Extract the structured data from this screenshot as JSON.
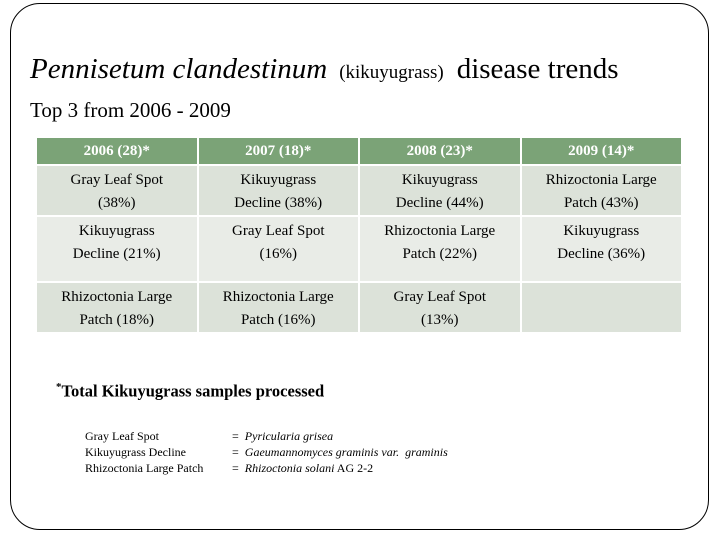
{
  "title": {
    "species": "Pennisetum clandestinum",
    "common_name": "(kikuyugrass)",
    "suffix": "disease trends",
    "subtitle": "Top 3 from 2006 - 2009"
  },
  "table": {
    "headers": [
      "2006 (28)*",
      "2007 (18)*",
      "2008 (23)*",
      "2009 (14)*"
    ],
    "rows": [
      [
        "Gray Leaf Spot\n(38%)",
        "Kikuyugrass\nDecline (38%)",
        "Kikuyugrass\nDecline (44%)",
        "Rhizoctonia Large\nPatch (43%)"
      ],
      [
        "Kikuyugrass\nDecline (21%)",
        "Gray Leaf Spot\n(16%)",
        "Rhizoctonia Large\nPatch (22%)",
        "Kikuyugrass\nDecline (36%)"
      ],
      [
        "Rhizoctonia Large\nPatch (18%)",
        "Rhizoctonia Large\nPatch (16%)",
        "Gray Leaf Spot\n(13%)",
        ""
      ]
    ]
  },
  "footnote": {
    "marker": "*",
    "text": "Total Kikuyugrass samples processed"
  },
  "legend": [
    {
      "term": "Gray Leaf Spot",
      "equals": "=",
      "scientific": "Pyricularia grisea",
      "plain": ""
    },
    {
      "term": "Kikuyugrass Decline",
      "equals": "=",
      "scientific": "Gaeumannomyces graminis var.  graminis",
      "plain": ""
    },
    {
      "term": "Rhizoctonia Large Patch",
      "equals": "=",
      "scientific": "Rhizoctonia solani",
      "plain": " AG 2-2"
    }
  ],
  "colors": {
    "header_bg": "#7ba377",
    "header_text": "#ffffff",
    "band_a": "#dce2d9",
    "band_b": "#e9ece7",
    "frame_border": "#000000",
    "body_text": "#000000"
  }
}
